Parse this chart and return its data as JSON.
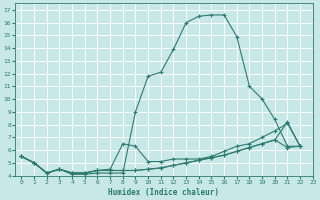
{
  "bg_color": "#c8e8e8",
  "grid_color": "#ffffff",
  "line_color": "#2d7a6e",
  "xlabel": "Humidex (Indice chaleur)",
  "xlim": [
    -0.5,
    23
  ],
  "ylim": [
    4,
    17.5
  ],
  "xticks": [
    0,
    1,
    2,
    3,
    4,
    5,
    6,
    7,
    8,
    9,
    10,
    11,
    12,
    13,
    14,
    15,
    16,
    17,
    18,
    19,
    20,
    21,
    22,
    23
  ],
  "yticks": [
    4,
    5,
    6,
    7,
    8,
    9,
    10,
    11,
    12,
    13,
    14,
    15,
    16,
    17
  ],
  "series": [
    {
      "x": [
        0,
        1,
        2,
        3,
        4,
        5,
        6,
        7,
        8,
        9,
        10,
        11,
        12,
        13,
        14,
        15,
        16,
        17,
        18,
        19,
        20,
        21,
        22
      ],
      "y": [
        5.5,
        5.0,
        4.2,
        4.5,
        4.1,
        4.1,
        4.2,
        4.2,
        4.2,
        9.0,
        11.8,
        12.1,
        13.9,
        16.0,
        16.5,
        16.6,
        16.6,
        14.9,
        11.0,
        10.0,
        8.4,
        6.3,
        6.3
      ]
    },
    {
      "x": [
        0,
        1,
        2,
        3,
        4,
        5,
        6,
        7,
        8,
        9,
        10,
        11,
        12,
        13,
        14,
        15,
        16,
        17,
        18,
        19,
        20,
        21,
        22
      ],
      "y": [
        5.5,
        5.0,
        4.2,
        4.5,
        4.2,
        4.2,
        4.4,
        4.4,
        4.4,
        4.4,
        4.5,
        4.6,
        4.8,
        5.0,
        5.2,
        5.4,
        5.6,
        5.9,
        6.2,
        6.5,
        6.8,
        8.2,
        6.3
      ]
    },
    {
      "x": [
        0,
        1,
        2,
        3,
        4,
        5,
        6,
        7,
        8,
        9,
        10,
        11,
        12,
        13,
        14,
        15,
        16,
        17,
        18,
        19,
        20,
        21,
        22
      ],
      "y": [
        5.5,
        5.0,
        4.2,
        4.5,
        4.2,
        4.2,
        4.4,
        4.4,
        4.4,
        4.4,
        4.5,
        4.6,
        4.8,
        5.0,
        5.2,
        5.4,
        5.6,
        5.9,
        6.2,
        6.5,
        6.8,
        6.2,
        6.3
      ]
    },
    {
      "x": [
        0,
        1,
        2,
        3,
        4,
        5,
        6,
        7,
        8,
        9,
        10,
        11,
        12,
        13,
        14,
        15,
        16,
        17,
        18,
        19,
        20,
        21,
        22
      ],
      "y": [
        5.5,
        5.0,
        4.2,
        4.5,
        4.2,
        4.2,
        4.4,
        4.5,
        6.5,
        6.3,
        5.1,
        5.1,
        5.3,
        5.3,
        5.3,
        5.5,
        5.9,
        6.3,
        6.5,
        7.0,
        7.5,
        8.1,
        6.3
      ]
    }
  ]
}
